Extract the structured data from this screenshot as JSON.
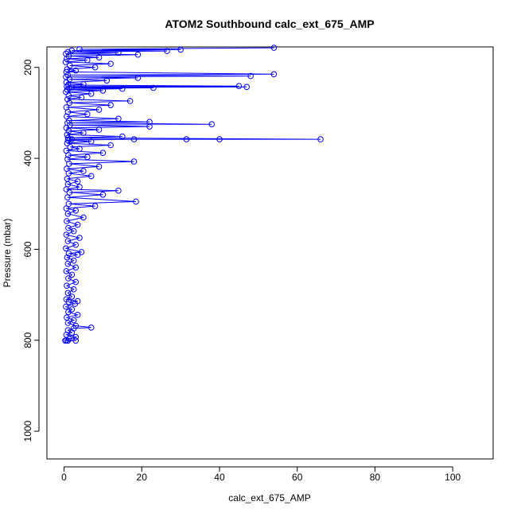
{
  "chart_data": {
    "type": "scatter",
    "title": "ATOM2 Southbound calc_ext_675_AMP",
    "xlabel": "calc_ext_675_AMP",
    "ylabel": "Pressure (mbar)",
    "xlim": [
      -4.4,
      110.4
    ],
    "ylim": [
      1061,
      155
    ],
    "y_reversed": true,
    "x_ticks": [
      0,
      20,
      40,
      60,
      80,
      100
    ],
    "y_ticks": [
      200,
      400,
      600,
      800,
      1000
    ],
    "grid": false,
    "legend": "none",
    "series": [
      {
        "color": "#0000ff",
        "marker": "open-circle",
        "connected": true,
        "points": [
          [
            54,
            157
          ],
          [
            4,
            160
          ],
          [
            30,
            161
          ],
          [
            2,
            163
          ],
          [
            26.5,
            164
          ],
          [
            1,
            166
          ],
          [
            14,
            168
          ],
          [
            0.5,
            170
          ],
          [
            19,
            172
          ],
          [
            1.2,
            175
          ],
          [
            9,
            178
          ],
          [
            0.7,
            181
          ],
          [
            6,
            184
          ],
          [
            0.4,
            188
          ],
          [
            12,
            192
          ],
          [
            1.5,
            196
          ],
          [
            8,
            200
          ],
          [
            0.8,
            204
          ],
          [
            3,
            207
          ],
          [
            0.6,
            210
          ],
          [
            54,
            215
          ],
          [
            1,
            217
          ],
          [
            48,
            219
          ],
          [
            0.5,
            221
          ],
          [
            19,
            223
          ],
          [
            1.4,
            226
          ],
          [
            11,
            229
          ],
          [
            0.6,
            233
          ],
          [
            5,
            237
          ],
          [
            1.1,
            239
          ],
          [
            45,
            241
          ],
          [
            0.7,
            242
          ],
          [
            47,
            243
          ],
          [
            2,
            244
          ],
          [
            23,
            245
          ],
          [
            1.3,
            246
          ],
          [
            15,
            247
          ],
          [
            0.8,
            249
          ],
          [
            10,
            251
          ],
          [
            0.5,
            254
          ],
          [
            7,
            258
          ],
          [
            1.2,
            262
          ],
          [
            4.5,
            266
          ],
          [
            0.9,
            270
          ],
          [
            17,
            274
          ],
          [
            1.4,
            278
          ],
          [
            12,
            283
          ],
          [
            0.6,
            288
          ],
          [
            9,
            293
          ],
          [
            1,
            298
          ],
          [
            6,
            303
          ],
          [
            0.7,
            308
          ],
          [
            14,
            313
          ],
          [
            1.3,
            317
          ],
          [
            22,
            320
          ],
          [
            0.9,
            322
          ],
          [
            38,
            325
          ],
          [
            1.5,
            327
          ],
          [
            22,
            330
          ],
          [
            0.6,
            333
          ],
          [
            9,
            337
          ],
          [
            1.2,
            340
          ],
          [
            5,
            344
          ],
          [
            0.8,
            348
          ],
          [
            15,
            352
          ],
          [
            1,
            355
          ],
          [
            66,
            358
          ],
          [
            2,
            358
          ],
          [
            40,
            358
          ],
          [
            1.5,
            358
          ],
          [
            31.5,
            358
          ],
          [
            18,
            358
          ],
          [
            1,
            360
          ],
          [
            7,
            363
          ],
          [
            0.8,
            367
          ],
          [
            12,
            371
          ],
          [
            1.6,
            375
          ],
          [
            4,
            379
          ],
          [
            0.6,
            383
          ],
          [
            10,
            388
          ],
          [
            1.1,
            393
          ],
          [
            6,
            397
          ],
          [
            0.9,
            402
          ],
          [
            18,
            407
          ],
          [
            1.3,
            412
          ],
          [
            9,
            418
          ],
          [
            0.7,
            423
          ],
          [
            5,
            428
          ],
          [
            1.2,
            433
          ],
          [
            7,
            439
          ],
          [
            0.8,
            445
          ],
          [
            3.5,
            451
          ],
          [
            1,
            457
          ],
          [
            4,
            463
          ],
          [
            0.6,
            468
          ],
          [
            14,
            471
          ],
          [
            1.4,
            475
          ],
          [
            10,
            480
          ],
          [
            0.9,
            486
          ],
          [
            18.5,
            495
          ],
          [
            1.2,
            500
          ],
          [
            8,
            505
          ],
          [
            0.6,
            510
          ],
          [
            3,
            515
          ],
          [
            1,
            522
          ],
          [
            5,
            530
          ],
          [
            0.7,
            538
          ],
          [
            3.5,
            546
          ],
          [
            1.1,
            553
          ],
          [
            2.5,
            560
          ],
          [
            0.6,
            568
          ],
          [
            4,
            575
          ],
          [
            1,
            582
          ],
          [
            3,
            590
          ],
          [
            0.5,
            598
          ],
          [
            4.5,
            606
          ],
          [
            1.2,
            609
          ],
          [
            3.5,
            612
          ],
          [
            0.8,
            618
          ],
          [
            2.5,
            625
          ],
          [
            1,
            632
          ],
          [
            3,
            640
          ],
          [
            0.6,
            648
          ],
          [
            2,
            656
          ],
          [
            1.1,
            664
          ],
          [
            3,
            672
          ],
          [
            0.7,
            680
          ],
          [
            2.5,
            688
          ],
          [
            1,
            696
          ],
          [
            2,
            704
          ],
          [
            0.6,
            710
          ],
          [
            3.5,
            714
          ],
          [
            1.2,
            716
          ],
          [
            2.8,
            720
          ],
          [
            0.5,
            726
          ],
          [
            2,
            732
          ],
          [
            1.1,
            738
          ],
          [
            3.5,
            744
          ],
          [
            0.7,
            750
          ],
          [
            2.5,
            756
          ],
          [
            1,
            762
          ],
          [
            3,
            768
          ],
          [
            7,
            772
          ],
          [
            2.5,
            774
          ],
          [
            1,
            778
          ],
          [
            2,
            783
          ],
          [
            0.6,
            788
          ],
          [
            3,
            793
          ],
          [
            1.3,
            797
          ],
          [
            0.6,
            800
          ],
          [
            3,
            801
          ],
          [
            1,
            801
          ],
          [
            0.3,
            801
          ]
        ]
      }
    ]
  }
}
